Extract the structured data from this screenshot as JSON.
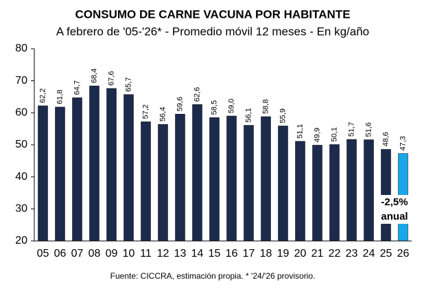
{
  "chart_data": {
    "type": "bar",
    "title": "CONSUMO DE CARNE VACUNA POR HABITANTE",
    "subtitle": "A febrero de '05-'26* - Promedio móvil 12 meses -  En kg/año",
    "source": "Fuente: CICCRA, estimación propia. * '24/'26 provisorio.",
    "categories": [
      "05",
      "06",
      "07",
      "08",
      "09",
      "10",
      "11",
      "12",
      "13",
      "14",
      "15",
      "16",
      "17",
      "18",
      "19",
      "20",
      "21",
      "22",
      "23",
      "24",
      "25",
      "26"
    ],
    "values": [
      62.2,
      61.8,
      64.7,
      68.4,
      67.6,
      65.7,
      57.2,
      56.4,
      59.6,
      62.6,
      58.5,
      59.0,
      56.1,
      58.8,
      55.9,
      51.1,
      49.9,
      50.1,
      51.7,
      51.6,
      48.6,
      47.3
    ],
    "value_labels": [
      "62,2",
      "61,8",
      "64,7",
      "68,4",
      "67,6",
      "65,7",
      "57,2",
      "56,4",
      "59,6",
      "62,6",
      "58,5",
      "59,0",
      "56,1",
      "58,8",
      "55,9",
      "51,1",
      "49,9",
      "50,1",
      "51,7",
      "51,6",
      "48,6",
      "47,3"
    ],
    "colors": [
      "#1c2a4c",
      "#1c2a4c",
      "#1c2a4c",
      "#1c2a4c",
      "#1c2a4c",
      "#1c2a4c",
      "#1c2a4c",
      "#1c2a4c",
      "#1c2a4c",
      "#1c2a4c",
      "#1c2a4c",
      "#1c2a4c",
      "#1c2a4c",
      "#1c2a4c",
      "#1c2a4c",
      "#1c2a4c",
      "#1c2a4c",
      "#1c2a4c",
      "#1c2a4c",
      "#1c2a4c",
      "#1c2a4c",
      "#1aa7ea"
    ],
    "ylim": [
      20,
      80
    ],
    "yticks": [
      20,
      30,
      40,
      50,
      60,
      70,
      80
    ],
    "annotation": [
      "-2,5%",
      "anual"
    ]
  }
}
